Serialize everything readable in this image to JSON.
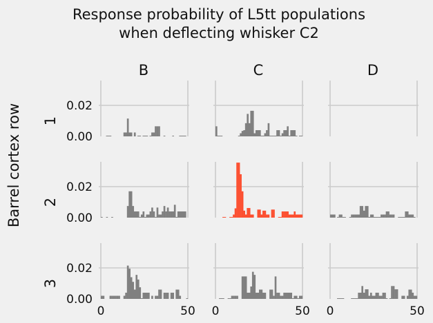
{
  "chart_data": {
    "type": "bar",
    "title": "Response probability of L5tt populations\nwhen deflecting whisker C2",
    "title_lines": [
      "Response probability of L5tt populations",
      "when deflecting whisker C2"
    ],
    "ylabel": "Barrel cortex row",
    "columns": [
      "B",
      "C",
      "D"
    ],
    "rows": [
      "1",
      "2",
      "3"
    ],
    "xlim": [
      0,
      50
    ],
    "ylim": [
      0,
      0.036
    ],
    "xticks": [
      0,
      50
    ],
    "xtick_labels": [
      "0",
      "50"
    ],
    "yticks": [
      0.0,
      0.02
    ],
    "ytick_labels": [
      "0.00",
      "0.02"
    ],
    "grid": true,
    "bin_width": 1,
    "default_color": "#808080",
    "highlight_color": "#fc4f30",
    "highlight_panel": "C2",
    "panels": [
      {
        "id": "B1",
        "row": "1",
        "col": "B",
        "values": [
          0,
          0,
          0,
          0.0003,
          0.0003,
          0.0003,
          0,
          0,
          0,
          0,
          0,
          0,
          0,
          0.0025,
          0.0025,
          0.0115,
          0.0025,
          0.0025,
          0,
          0.0025,
          0,
          0.0003,
          0.0003,
          0,
          0.0003,
          0.0003,
          0.0003,
          0,
          0.0003,
          0.0025,
          0.0025,
          0.0065,
          0.0065,
          0.0065,
          0,
          0,
          0.0003,
          0,
          0,
          0,
          0,
          0.0003,
          0,
          0,
          0,
          0.0003,
          0.0003,
          0.0003,
          0.0003,
          0
        ]
      },
      {
        "id": "C1",
        "row": "1",
        "col": "C",
        "values": [
          0.0065,
          0.0003,
          0.0003,
          0.0003,
          0,
          0,
          0,
          0,
          0,
          0,
          0,
          0,
          0,
          0.0003,
          0.002,
          0.0035,
          0.004,
          0.0085,
          0.0145,
          0.0085,
          0.0165,
          0.0165,
          0.002,
          0.004,
          0.004,
          0.004,
          0.0003,
          0.0003,
          0.002,
          0.004,
          0.0085,
          0.0003,
          0.0003,
          0.0003,
          0.0003,
          0.004,
          0.004,
          0.0003,
          0.002,
          0.004,
          0.004,
          0.0065,
          0.0003,
          0.004,
          0.004,
          0.004,
          0.0003,
          0,
          0.0003,
          0.0003
        ]
      },
      {
        "id": "D1",
        "row": "1",
        "col": "D",
        "values": []
      },
      {
        "id": "B2",
        "row": "2",
        "col": "B",
        "values": [
          0.0003,
          0,
          0,
          0.0003,
          0,
          0,
          0.0003,
          0,
          0,
          0,
          0,
          0,
          0,
          0,
          0,
          0.0075,
          0.017,
          0.017,
          0.0075,
          0.004,
          0.004,
          0.004,
          0.0003,
          0.002,
          0.004,
          0.0003,
          0.002,
          0.002,
          0.004,
          0.0065,
          0.004,
          0.0003,
          0.0065,
          0.002,
          0.002,
          0.004,
          0.0075,
          0.004,
          0.0065,
          0.004,
          0.004,
          0.004,
          0.0083,
          0.0003,
          0.004,
          0.004,
          0.004,
          0.004,
          0.004,
          0
        ]
      },
      {
        "id": "C2",
        "row": "2",
        "col": "C",
        "values": [
          0,
          0,
          0,
          0,
          0.0003,
          0.0003,
          0,
          0,
          0.0003,
          0.0003,
          0.002,
          0.006,
          0.0355,
          0.0355,
          0.028,
          0.017,
          0.0045,
          0.002,
          0.0062,
          0.0062,
          0.002,
          0.002,
          0,
          0,
          0.0052,
          0.0052,
          0.002,
          0.0045,
          0.0045,
          0.002,
          0.002,
          0,
          0.0052,
          0.0052,
          0,
          0,
          0.0003,
          0.0003,
          0.004,
          0.004,
          0.004,
          0.004,
          0.002,
          0.002,
          0.002,
          0.004,
          0.002,
          0.002,
          0.002,
          0.002
        ]
      },
      {
        "id": "D2",
        "row": "2",
        "col": "D",
        "values": [
          0.002,
          0.002,
          0.002,
          0,
          0.0003,
          0.002,
          0.002,
          0.0003,
          0.0003,
          0,
          0,
          0.0003,
          0.002,
          0.002,
          0.002,
          0.002,
          0.002,
          0.0075,
          0.0075,
          0.0045,
          0.0075,
          0.0075,
          0.0003,
          0.002,
          0.002,
          0.0003,
          0.0003,
          0.0003,
          0.0003,
          0.002,
          0.002,
          0.002,
          0.004,
          0.004,
          0.002,
          0.002,
          0.002,
          0,
          0,
          0.0003,
          0.0003,
          0.0003,
          0.0003,
          0.004,
          0.004,
          0.002,
          0.002,
          0.002,
          0.0003,
          0
        ]
      },
      {
        "id": "B3",
        "row": "3",
        "col": "B",
        "values": [
          0.002,
          0.002,
          0,
          0,
          0,
          0.002,
          0.002,
          0.002,
          0.002,
          0.002,
          0.002,
          0,
          0,
          0.002,
          0.004,
          0.0215,
          0.0195,
          0.014,
          0.011,
          0.006,
          0.0155,
          0.0125,
          0.0075,
          0.0003,
          0.004,
          0.004,
          0.004,
          0.004,
          0,
          0.002,
          0,
          0.002,
          0.002,
          0.006,
          0.006,
          0,
          0.004,
          0.004,
          0.004,
          0,
          0.004,
          0.004,
          0,
          0.006,
          0.006,
          0.002,
          0,
          0,
          0,
          0.0003
        ]
      },
      {
        "id": "C3",
        "row": "3",
        "col": "C",
        "values": [
          0,
          0,
          0.0003,
          0.0003,
          0.0003,
          0,
          0,
          0.0003,
          0.0003,
          0.002,
          0.002,
          0.002,
          0.002,
          0,
          0,
          0.0145,
          0.0145,
          0.0145,
          0.004,
          0.004,
          0.008,
          0.0175,
          0.0155,
          0.004,
          0.004,
          0.006,
          0.006,
          0.004,
          0.004,
          0,
          0,
          0.006,
          0.006,
          0.002,
          0.0145,
          0.004,
          0.004,
          0.002,
          0.002,
          0.004,
          0.004,
          0.004,
          0.004,
          0.004,
          0.0003,
          0.002,
          0.002,
          0.0003,
          0.002,
          0.002
        ]
      },
      {
        "id": "D3",
        "row": "3",
        "col": "D",
        "values": [
          0,
          0,
          0,
          0,
          0.0003,
          0.0003,
          0.0003,
          0.0003,
          0,
          0,
          0,
          0,
          0.0003,
          0.0003,
          0.0003,
          0.0003,
          0.004,
          0.004,
          0.0083,
          0.004,
          0.0062,
          0.0062,
          0.002,
          0.004,
          0.002,
          0.002,
          0.004,
          0.004,
          0.002,
          0.002,
          0.004,
          0.004,
          0.0003,
          0,
          0.0003,
          0.0083,
          0.0083,
          0.0062,
          0.0062,
          0,
          0,
          0.002,
          0.002,
          0,
          0.002,
          0.006,
          0.006,
          0.004,
          0.002,
          0.002
        ]
      }
    ]
  }
}
